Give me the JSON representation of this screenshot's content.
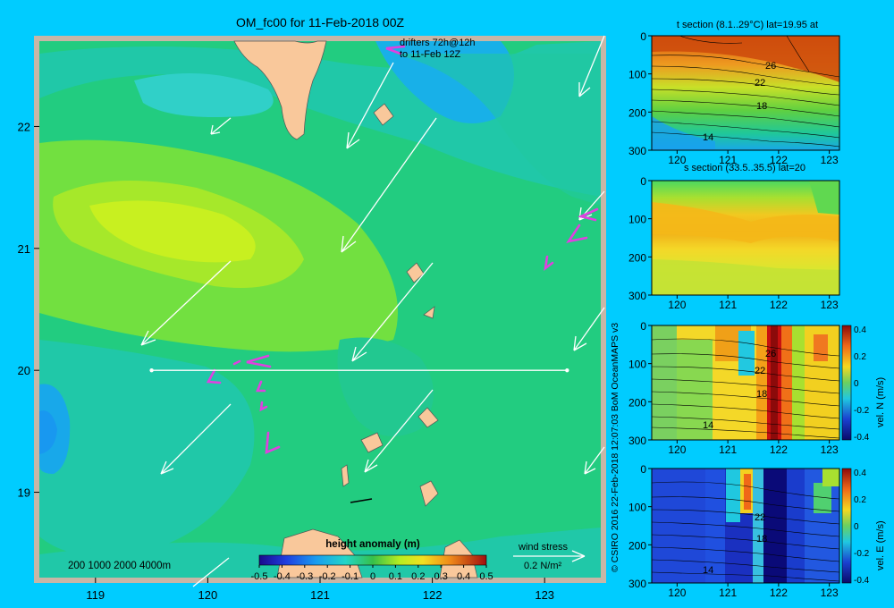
{
  "title": "OM_fc00 for 11-Feb-2018 00Z",
  "drifter_note": [
    "drifters 72h@12h",
    "to 11-Feb 12Z"
  ],
  "depth_legend": "200  1000  2000  4000m",
  "wind_stress": {
    "label": "wind stress",
    "value_label": "0.2 N/m²"
  },
  "side_credit": "© CSIRO 2016   22-Feb-2018 12:07:03 BoM OceanMAPS v3",
  "colors": {
    "background": "#00ccff",
    "land": "#f9c89b",
    "frame": "#c8b6a6",
    "transect": "#ffffff",
    "drifter": "#e040e0"
  },
  "chart_data": [
    {
      "type": "heatmap",
      "name": "map",
      "title": "OM_fc00 for 11-Feb-2018 00Z",
      "xlim": [
        118.5,
        123.5
      ],
      "ylim": [
        18.3,
        22.7
      ],
      "x_ticks": [
        "119",
        "120",
        "121",
        "122",
        "123"
      ],
      "y_ticks": [
        "19",
        "20",
        "21",
        "22"
      ],
      "colorbar": {
        "title": "height anomaly (m)",
        "ticks": [
          "-0.5",
          "-0.4",
          "-0.3",
          "-0.2",
          "-0.1",
          "0",
          "0.1",
          "0.2",
          "0.3",
          "0.4",
          "0.5"
        ],
        "range": [
          -0.5,
          0.5
        ]
      },
      "transect": {
        "lat": 20,
        "lon_start": 119.5,
        "lon_end": 123.2
      },
      "anomaly_centres": [
        {
          "lon": 120.0,
          "lat": 21.0,
          "value": 0.15
        },
        {
          "lon": 121.3,
          "lat": 22.5,
          "value": -0.15
        },
        {
          "lon": 118.6,
          "lat": 19.6,
          "value": -0.15
        }
      ]
    },
    {
      "type": "heatmap",
      "name": "t-section",
      "title": "t section (8.1..29°C) lat=19.95 at",
      "xlim": [
        119.5,
        123.2
      ],
      "ylim": [
        300,
        0
      ],
      "x_ticks": [
        "120",
        "121",
        "122",
        "123"
      ],
      "y_ticks": [
        "0",
        "100",
        "200",
        "300"
      ],
      "contour_labels": [
        "26",
        "22",
        "18",
        "14"
      ]
    },
    {
      "type": "heatmap",
      "name": "s-section",
      "title": "s section (33.5..35.5) lat=20",
      "xlim": [
        119.5,
        123.2
      ],
      "ylim": [
        300,
        0
      ],
      "x_ticks": [
        "120",
        "121",
        "122",
        "123"
      ],
      "y_ticks": [
        "0",
        "100",
        "200",
        "300"
      ]
    },
    {
      "type": "heatmap",
      "name": "vel-n-section",
      "xlim": [
        119.5,
        123.2
      ],
      "ylim": [
        300,
        0
      ],
      "x_ticks": [
        "120",
        "121",
        "122",
        "123"
      ],
      "y_ticks": [
        "0",
        "100",
        "200",
        "300"
      ],
      "contour_labels": [
        "26",
        "22",
        "18",
        "14"
      ],
      "colorbar": {
        "label": "vel. N (m/s)",
        "ticks": [
          "0.4",
          "0.2",
          "0",
          "-0.2",
          "-0.4"
        ],
        "range": [
          -0.4,
          0.4
        ]
      }
    },
    {
      "type": "heatmap",
      "name": "vel-e-section",
      "xlim": [
        119.5,
        123.2
      ],
      "ylim": [
        300,
        0
      ],
      "x_ticks": [
        "120",
        "121",
        "122",
        "123"
      ],
      "y_ticks": [
        "0",
        "100",
        "200",
        "300"
      ],
      "contour_labels": [
        "26",
        "22",
        "18",
        "14"
      ],
      "colorbar": {
        "label": "vel. E (m/s)",
        "ticks": [
          "0.4",
          "0.2",
          "0",
          "-0.2",
          "-0.4"
        ],
        "range": [
          -0.4,
          0.4
        ]
      }
    }
  ]
}
